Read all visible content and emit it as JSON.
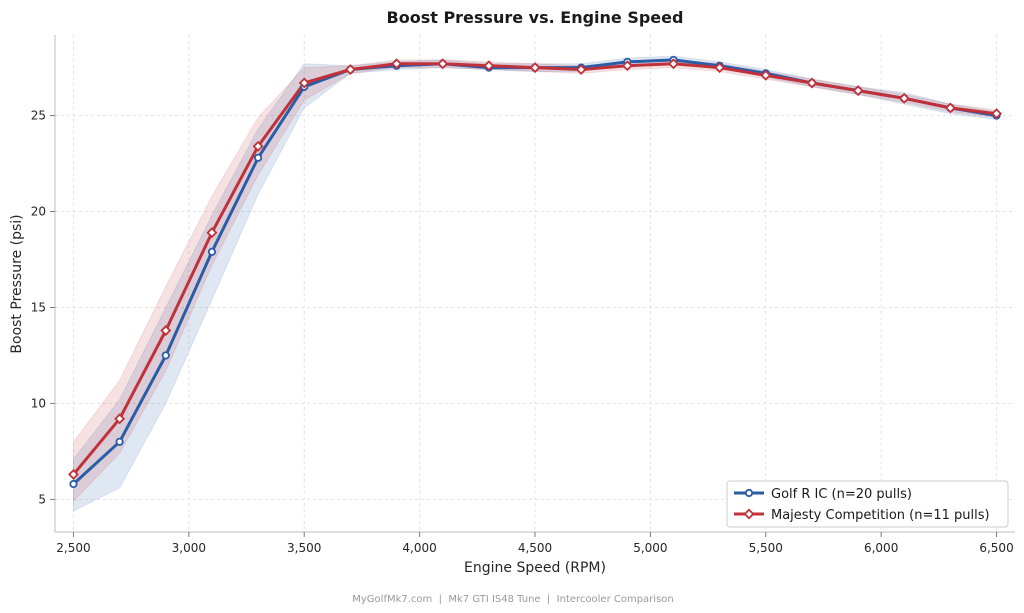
{
  "chart_data": {
    "type": "line",
    "title": "Boost Pressure vs. Engine Speed",
    "xlabel": "Engine Speed (RPM)",
    "ylabel": "Boost Pressure (psi)",
    "xlim": [
      2420,
      6580
    ],
    "ylim": [
      3.3,
      29.2
    ],
    "xticks": [
      2500,
      3000,
      3500,
      4000,
      4500,
      5000,
      5500,
      6000,
      6500
    ],
    "xtick_labels": [
      "2,500",
      "3,000",
      "3,500",
      "4,000",
      "4,500",
      "5,000",
      "5,500",
      "6,000",
      "6,500"
    ],
    "yticks": [
      5,
      10,
      15,
      20,
      25
    ],
    "ytick_labels": [
      "5",
      "10",
      "15",
      "20",
      "25"
    ],
    "grid": true,
    "legend_position": "bottom-right",
    "x": [
      2500,
      2700,
      2900,
      3100,
      3300,
      3500,
      3700,
      3900,
      4100,
      4300,
      4500,
      4700,
      4900,
      5100,
      5300,
      5500,
      5700,
      5900,
      6100,
      6300,
      6500
    ],
    "series": [
      {
        "name": "Golf R IC (n=20 pulls)",
        "color": "#2a5ca8",
        "marker": "circle",
        "values": [
          5.8,
          8.0,
          12.5,
          17.9,
          22.8,
          26.5,
          27.4,
          27.6,
          27.7,
          27.5,
          27.5,
          27.5,
          27.8,
          27.9,
          27.6,
          27.2,
          26.7,
          26.3,
          25.9,
          25.4,
          25.0
        ],
        "band_lower": [
          4.4,
          5.6,
          10.0,
          15.4,
          20.9,
          25.4,
          27.2,
          27.4,
          27.5,
          27.4,
          27.3,
          27.3,
          27.6,
          27.7,
          27.5,
          27.0,
          26.5,
          26.1,
          25.6,
          25.1,
          24.8
        ],
        "band_upper": [
          7.1,
          10.2,
          15.0,
          19.8,
          24.3,
          27.7,
          27.6,
          27.8,
          27.9,
          27.7,
          27.7,
          27.7,
          28.0,
          28.1,
          27.8,
          27.4,
          26.9,
          26.5,
          26.2,
          25.6,
          25.2
        ]
      },
      {
        "name": "Majesty Competition (n=11 pulls)",
        "color": "#c0313a",
        "marker": "diamond",
        "values": [
          6.3,
          9.2,
          13.8,
          18.9,
          23.4,
          26.7,
          27.4,
          27.7,
          27.7,
          27.6,
          27.5,
          27.4,
          27.6,
          27.7,
          27.5,
          27.1,
          26.7,
          26.3,
          25.9,
          25.4,
          25.1
        ],
        "band_lower": [
          4.9,
          7.4,
          11.7,
          17.2,
          21.9,
          25.8,
          27.2,
          27.5,
          27.5,
          27.4,
          27.3,
          27.2,
          27.4,
          27.5,
          27.3,
          26.9,
          26.5,
          26.1,
          25.7,
          25.2,
          24.9
        ],
        "band_upper": [
          8.0,
          11.2,
          16.1,
          20.8,
          24.9,
          27.5,
          27.6,
          27.9,
          27.9,
          27.8,
          27.7,
          27.6,
          27.8,
          27.9,
          27.7,
          27.3,
          26.9,
          26.5,
          26.1,
          25.6,
          25.3
        ]
      }
    ]
  },
  "footer": "MyGolfMk7.com  |  Mk7 GTI IS48 Tune  |  Intercooler Comparison"
}
